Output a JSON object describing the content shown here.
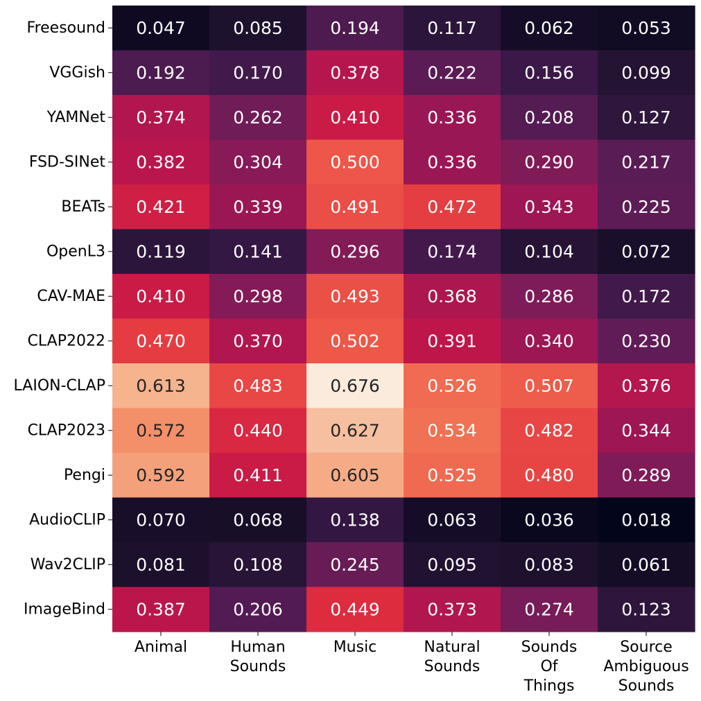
{
  "chart_data": {
    "type": "heatmap",
    "title": "",
    "xlabel": "",
    "ylabel": "",
    "rows": [
      "Freesound",
      "VGGish",
      "YAMNet",
      "FSD-SINet",
      "BEATs",
      "OpenL3",
      "CAV-MAE",
      "CLAP2022",
      "LAION-CLAP",
      "CLAP2023",
      "Pengi",
      "AudioCLIP",
      "Wav2CLIP",
      "ImageBind"
    ],
    "columns": [
      [
        "Animal"
      ],
      [
        "Human",
        "Sounds"
      ],
      [
        "Music"
      ],
      [
        "Natural",
        "Sounds"
      ],
      [
        "Sounds",
        "Of",
        "Things"
      ],
      [
        "Source",
        "Ambiguous",
        "Sounds"
      ]
    ],
    "values": [
      [
        0.047,
        0.085,
        0.194,
        0.117,
        0.062,
        0.053
      ],
      [
        0.192,
        0.17,
        0.378,
        0.222,
        0.156,
        0.099
      ],
      [
        0.374,
        0.262,
        0.41,
        0.336,
        0.208,
        0.127
      ],
      [
        0.382,
        0.304,
        0.5,
        0.336,
        0.29,
        0.217
      ],
      [
        0.421,
        0.339,
        0.491,
        0.472,
        0.343,
        0.225
      ],
      [
        0.119,
        0.141,
        0.296,
        0.174,
        0.104,
        0.072
      ],
      [
        0.41,
        0.298,
        0.493,
        0.368,
        0.286,
        0.172
      ],
      [
        0.47,
        0.37,
        0.502,
        0.391,
        0.34,
        0.23
      ],
      [
        0.613,
        0.483,
        0.676,
        0.526,
        0.507,
        0.376
      ],
      [
        0.572,
        0.44,
        0.627,
        0.534,
        0.482,
        0.344
      ],
      [
        0.592,
        0.411,
        0.605,
        0.525,
        0.48,
        0.289
      ],
      [
        0.07,
        0.068,
        0.138,
        0.063,
        0.036,
        0.018
      ],
      [
        0.081,
        0.108,
        0.245,
        0.095,
        0.083,
        0.061
      ],
      [
        0.387,
        0.206,
        0.449,
        0.373,
        0.274,
        0.123
      ]
    ],
    "value_format": "0.000",
    "colormap": "rocket",
    "color_range": [
      0.018,
      0.676
    ],
    "colorbar": false,
    "grid": false
  }
}
